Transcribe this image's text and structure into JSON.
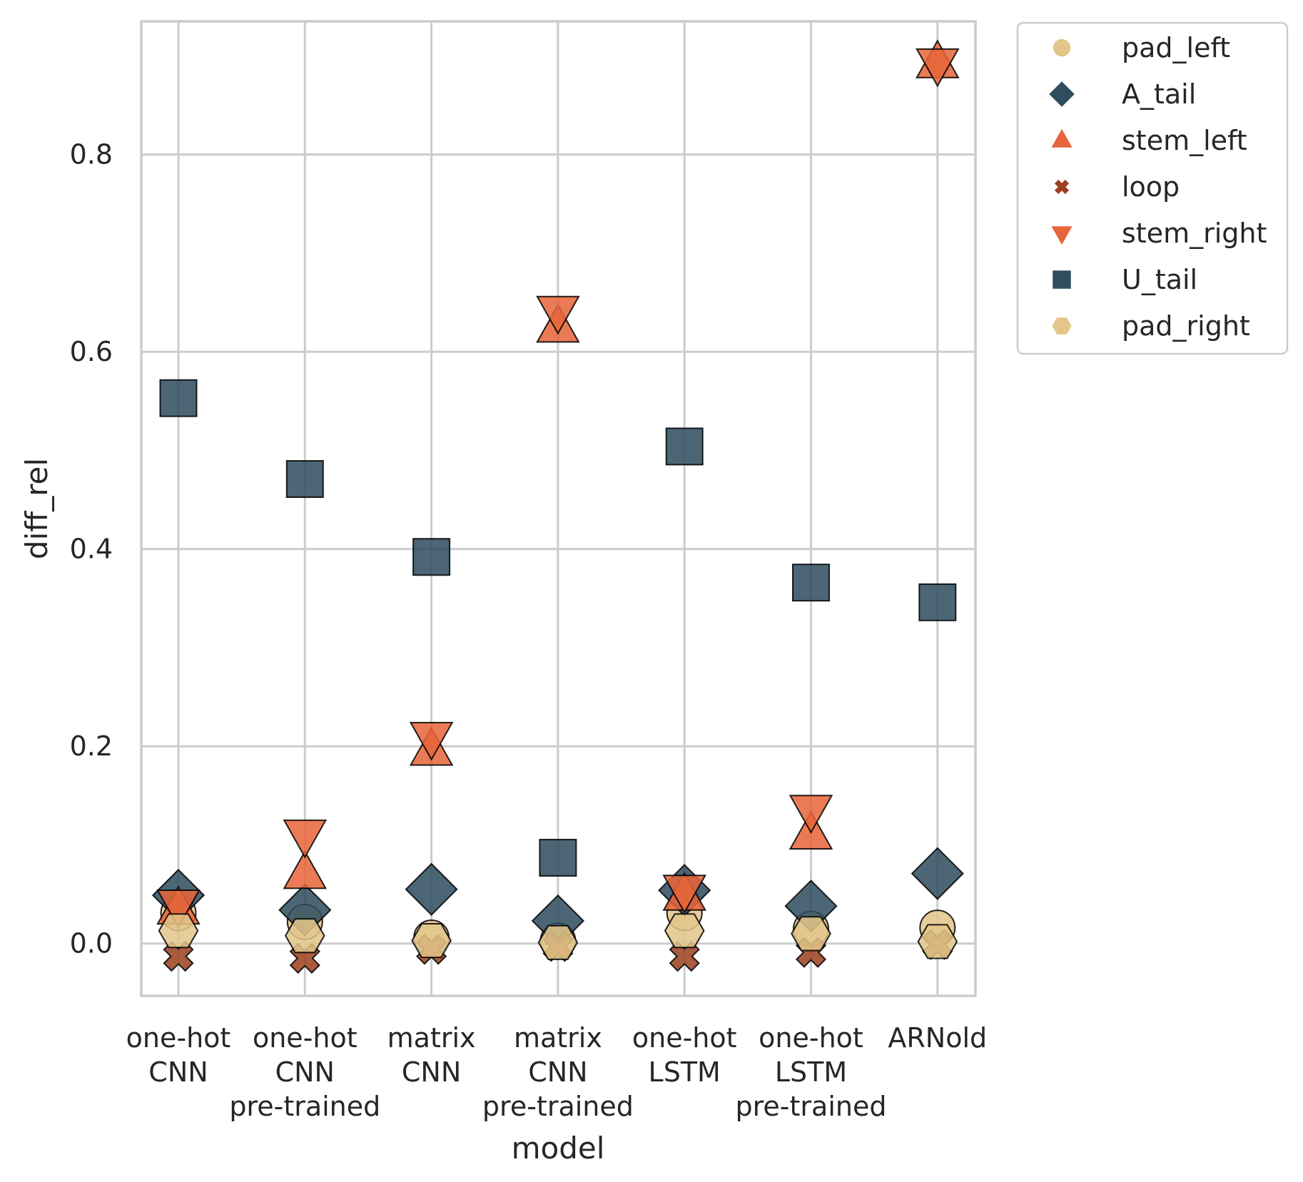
{
  "chart_data": {
    "type": "scatter",
    "xlabel": "model",
    "ylabel": "diff_rel",
    "categories": [
      [
        "one-hot",
        "CNN"
      ],
      [
        "one-hot",
        "CNN",
        "pre-trained"
      ],
      [
        "matrix",
        "CNN"
      ],
      [
        "matrix",
        "CNN",
        "pre-trained"
      ],
      [
        "one-hot",
        "LSTM"
      ],
      [
        "one-hot",
        "LSTM",
        "pre-trained"
      ],
      [
        "ARNold"
      ]
    ],
    "ylim": [
      -0.053,
      0.935
    ],
    "yticks": [
      0.0,
      0.2,
      0.4,
      0.6,
      0.8
    ],
    "ytick_labels": [
      "0.0",
      "0.2",
      "0.4",
      "0.6",
      "0.8"
    ],
    "grid": true,
    "legend_position": "outside-top-right",
    "series": [
      {
        "name": "pad_left",
        "marker": "circle",
        "color": "#e2c68a",
        "values": [
          0.031,
          0.022,
          0.006,
          0.003,
          0.031,
          0.015,
          0.016
        ]
      },
      {
        "name": "A_tail",
        "marker": "diamond",
        "color": "#2f4d5e",
        "values": [
          0.049,
          0.034,
          0.055,
          0.023,
          0.054,
          0.038,
          0.071
        ]
      },
      {
        "name": "stem_left",
        "marker": "triangle-up",
        "color": "#e8653a",
        "values": [
          0.034,
          0.07,
          0.195,
          0.624,
          0.048,
          0.11,
          0.892
        ]
      },
      {
        "name": "loop",
        "marker": "x",
        "color": "#9c4120",
        "values": [
          -0.013,
          -0.015,
          -0.006,
          -0.003,
          -0.013,
          -0.009,
          -0.001
        ]
      },
      {
        "name": "stem_right",
        "marker": "triangle-down",
        "color": "#e8653a",
        "values": [
          0.04,
          0.111,
          0.21,
          0.642,
          0.055,
          0.136,
          0.893
        ]
      },
      {
        "name": "U_tail",
        "marker": "square",
        "color": "#2f4d5e",
        "values": [
          0.553,
          0.471,
          0.392,
          0.087,
          0.504,
          0.366,
          0.346
        ]
      },
      {
        "name": "pad_right",
        "marker": "hexagon",
        "color": "#e2c68a",
        "values": [
          0.013,
          0.008,
          0.003,
          0.001,
          0.013,
          0.01,
          0.002
        ]
      }
    ]
  }
}
